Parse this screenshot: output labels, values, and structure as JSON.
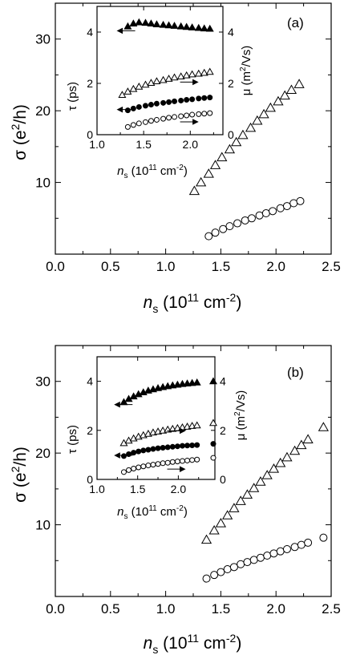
{
  "chart_data": [
    {
      "type": "scatter",
      "panel_label": "(a)",
      "xlabel": "n_s (10^11 cm^-2)",
      "ylabel": "σ (e^2/h)",
      "xlim": [
        0.0,
        2.5
      ],
      "ylim": [
        0,
        35
      ],
      "xticks": [
        "0.0",
        "0.5",
        "1.0",
        "1.5",
        "2.0",
        "2.5"
      ],
      "yticks": [
        "10",
        "20",
        "30"
      ],
      "series": [
        {
          "marker": "open-triangle",
          "x": [
            1.26,
            1.32,
            1.39,
            1.45,
            1.51,
            1.58,
            1.64,
            1.7,
            1.77,
            1.83,
            1.89,
            1.95,
            2.02,
            2.08,
            2.14,
            2.21
          ],
          "y": [
            8.8,
            10.0,
            11.2,
            12.4,
            13.5,
            14.6,
            15.6,
            16.6,
            17.6,
            18.6,
            19.5,
            20.4,
            21.3,
            22.1,
            22.9,
            23.7
          ]
        },
        {
          "marker": "open-circle",
          "x": [
            1.39,
            1.45,
            1.52,
            1.58,
            1.65,
            1.72,
            1.78,
            1.85,
            1.91,
            1.97,
            2.04,
            2.1,
            2.16,
            2.22
          ],
          "y": [
            2.5,
            3.0,
            3.5,
            3.9,
            4.3,
            4.7,
            5.0,
            5.4,
            5.7,
            6.0,
            6.4,
            6.7,
            7.1,
            7.4
          ]
        }
      ],
      "inset": {
        "xlabel": "n_s (10^11 cm^-2)",
        "ylabel_left": "τ (ps)",
        "ylabel_right": "μ (m^2/Vs)",
        "xlim": [
          1.0,
          2.35
        ],
        "ylim": [
          0,
          5
        ],
        "xticks": [
          "1.0",
          "1.5",
          "2.0"
        ],
        "yticks_left": [
          "0",
          "2",
          "4"
        ],
        "yticks_right": [
          "0",
          "2",
          "4"
        ],
        "series": [
          {
            "marker": "filled-triangle",
            "axis": "left",
            "x": [
              1.33,
              1.39,
              1.45,
              1.52,
              1.58,
              1.64,
              1.71,
              1.77,
              1.83,
              1.9,
              1.96,
              2.02,
              2.09,
              2.15,
              2.21
            ],
            "y": [
              4.22,
              4.33,
              4.38,
              4.36,
              4.33,
              4.3,
              4.28,
              4.26,
              4.24,
              4.22,
              4.2,
              4.18,
              4.16,
              4.14,
              4.13
            ]
          },
          {
            "marker": "open-triangle",
            "axis": "right",
            "x": [
              1.27,
              1.33,
              1.39,
              1.45,
              1.52,
              1.58,
              1.64,
              1.71,
              1.77,
              1.83,
              1.9,
              1.96,
              2.02,
              2.09,
              2.15,
              2.21
            ],
            "y": [
              1.55,
              1.68,
              1.78,
              1.87,
              1.95,
              2.02,
              2.08,
              2.13,
              2.18,
              2.23,
              2.27,
              2.31,
              2.35,
              2.38,
              2.41,
              2.45
            ]
          },
          {
            "marker": "filled-circle",
            "axis": "left",
            "x": [
              1.33,
              1.39,
              1.45,
              1.52,
              1.58,
              1.64,
              1.71,
              1.77,
              1.83,
              1.9,
              1.96,
              2.02,
              2.09,
              2.15,
              2.21
            ],
            "y": [
              0.95,
              1.02,
              1.08,
              1.13,
              1.17,
              1.21,
              1.24,
              1.27,
              1.3,
              1.33,
              1.36,
              1.38,
              1.41,
              1.43,
              1.45
            ]
          },
          {
            "marker": "open-circle",
            "axis": "right",
            "x": [
              1.33,
              1.39,
              1.45,
              1.52,
              1.58,
              1.64,
              1.71,
              1.77,
              1.83,
              1.9,
              1.96,
              2.02,
              2.09,
              2.15,
              2.21
            ],
            "y": [
              0.3,
              0.38,
              0.44,
              0.49,
              0.54,
              0.58,
              0.62,
              0.66,
              0.69,
              0.72,
              0.75,
              0.78,
              0.8,
              0.82,
              0.84
            ]
          }
        ],
        "arrows": [
          {
            "direction": "left",
            "x": 1.22,
            "y": 4.05
          },
          {
            "direction": "right",
            "x": 2.08,
            "y": 2.05
          },
          {
            "direction": "left",
            "x": 1.22,
            "y": 0.98
          },
          {
            "direction": "right",
            "x": 2.08,
            "y": 0.5
          }
        ]
      }
    },
    {
      "type": "scatter",
      "panel_label": "(b)",
      "xlabel": "n_s (10^11 cm^-2)",
      "ylabel": "σ (e^2/h)",
      "xlim": [
        0.0,
        2.5
      ],
      "ylim": [
        0,
        35
      ],
      "xticks": [
        "0.0",
        "0.5",
        "1.0",
        "1.5",
        "2.0",
        "2.5"
      ],
      "yticks": [
        "10",
        "20",
        "30"
      ],
      "series": [
        {
          "marker": "open-triangle",
          "x": [
            1.37,
            1.44,
            1.5,
            1.56,
            1.62,
            1.68,
            1.74,
            1.8,
            1.86,
            1.92,
            1.98,
            2.04,
            2.1,
            2.17,
            2.23,
            2.29,
            2.43
          ],
          "y": [
            7.9,
            9.2,
            10.2,
            11.3,
            12.3,
            13.3,
            14.2,
            15.1,
            16.0,
            16.9,
            17.8,
            18.6,
            19.4,
            20.3,
            21.1,
            21.9,
            23.6
          ]
        },
        {
          "marker": "open-circle",
          "x": [
            1.37,
            1.44,
            1.5,
            1.56,
            1.62,
            1.68,
            1.74,
            1.8,
            1.86,
            1.92,
            1.98,
            2.04,
            2.1,
            2.17,
            2.23,
            2.29,
            2.43
          ],
          "y": [
            2.5,
            3.0,
            3.4,
            3.8,
            4.1,
            4.5,
            4.8,
            5.1,
            5.4,
            5.7,
            6.0,
            6.3,
            6.6,
            6.9,
            7.2,
            7.5,
            8.2
          ]
        }
      ],
      "inset": {
        "xlabel": "n_s (10^11 cm^-2)",
        "ylabel_left": "τ (ps)",
        "ylabel_right": "μ (m^2/Vs)",
        "xlim": [
          1.0,
          2.45
        ],
        "ylim": [
          0,
          5
        ],
        "xticks": [
          "1.0",
          "1.5",
          "2.0"
        ],
        "yticks_left": [
          "0",
          "2",
          "4"
        ],
        "yticks_right": [
          "0",
          "2",
          "4"
        ],
        "series": [
          {
            "marker": "filled-triangle",
            "axis": "left",
            "x": [
              1.33,
              1.39,
              1.45,
              1.51,
              1.57,
              1.63,
              1.69,
              1.75,
              1.81,
              1.87,
              1.93,
              1.99,
              2.05,
              2.11,
              2.17,
              2.23,
              2.43
            ],
            "y": [
              3.15,
              3.28,
              3.38,
              3.47,
              3.55,
              3.62,
              3.67,
              3.72,
              3.76,
              3.8,
              3.83,
              3.86,
              3.89,
              3.91,
              3.93,
              3.95,
              4.0
            ]
          },
          {
            "marker": "open-triangle",
            "axis": "right",
            "x": [
              1.33,
              1.39,
              1.45,
              1.51,
              1.57,
              1.63,
              1.69,
              1.75,
              1.81,
              1.87,
              1.93,
              1.99,
              2.05,
              2.11,
              2.17,
              2.23,
              2.43
            ],
            "y": [
              1.48,
              1.58,
              1.67,
              1.74,
              1.8,
              1.86,
              1.91,
              1.95,
              1.99,
              2.03,
              2.06,
              2.09,
              2.12,
              2.15,
              2.18,
              2.2,
              2.3
            ]
          },
          {
            "marker": "filled-circle",
            "axis": "left",
            "x": [
              1.33,
              1.39,
              1.45,
              1.51,
              1.57,
              1.63,
              1.69,
              1.75,
              1.81,
              1.87,
              1.93,
              1.99,
              2.05,
              2.11,
              2.17,
              2.23,
              2.43
            ],
            "y": [
              0.95,
              1.03,
              1.09,
              1.14,
              1.18,
              1.21,
              1.24,
              1.27,
              1.29,
              1.31,
              1.33,
              1.35,
              1.37,
              1.38,
              1.39,
              1.4,
              1.45
            ]
          },
          {
            "marker": "open-circle",
            "axis": "right",
            "x": [
              1.33,
              1.39,
              1.45,
              1.51,
              1.57,
              1.63,
              1.69,
              1.75,
              1.81,
              1.87,
              1.93,
              1.99,
              2.05,
              2.11,
              2.17,
              2.23,
              2.43
            ],
            "y": [
              0.3,
              0.38,
              0.44,
              0.49,
              0.53,
              0.57,
              0.6,
              0.63,
              0.66,
              0.68,
              0.71,
              0.73,
              0.75,
              0.77,
              0.79,
              0.81,
              0.88
            ]
          }
        ],
        "arrows": [
          {
            "direction": "left",
            "x": 1.22,
            "y": 3.05
          },
          {
            "direction": "right",
            "x": 2.08,
            "y": 1.98
          },
          {
            "direction": "left",
            "x": 1.22,
            "y": 0.98
          },
          {
            "direction": "right",
            "x": 2.08,
            "y": 0.42
          }
        ]
      }
    }
  ],
  "labels": {
    "panel_a": "(a)",
    "panel_b": "(b)",
    "ns_italic": "n",
    "ns_sub": "s",
    "ns_unit_pre": " (10",
    "ns_unit_exp": "11",
    "ns_unit_mid": " cm",
    "ns_unit_exp2": "-2",
    "ns_unit_post": ")",
    "sigma_pre": "σ (e",
    "sigma_sup": "2",
    "sigma_post": "/h)",
    "tau": "τ (ps)",
    "mu_pre": "μ (m",
    "mu_sup": "2",
    "mu_post": "/Vs)"
  }
}
